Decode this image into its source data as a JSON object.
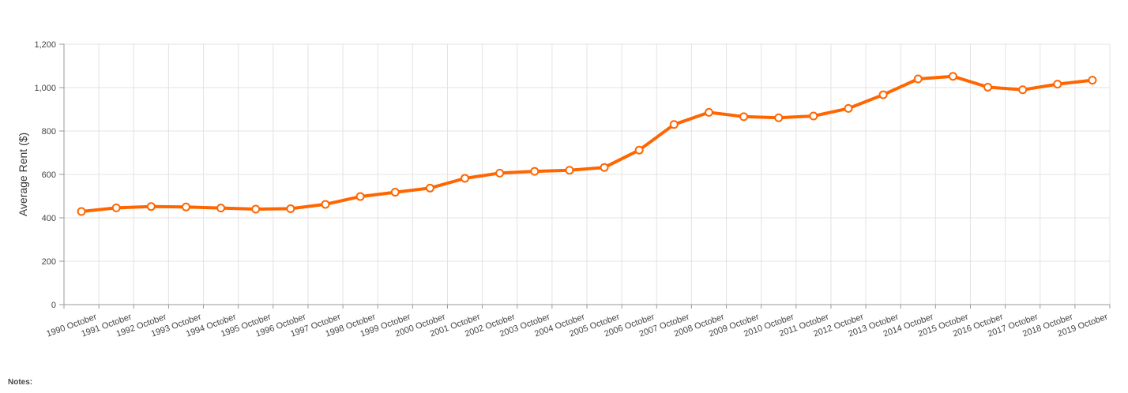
{
  "chart_data": {
    "type": "line",
    "title": "",
    "xlabel": "",
    "ylabel": "Average Rent ($)",
    "ylim": [
      0,
      1200
    ],
    "yticks": [
      0,
      200,
      400,
      600,
      800,
      1000,
      1200
    ],
    "ytick_labels": [
      "0",
      "200",
      "400",
      "600",
      "800",
      "1,000",
      "1,200"
    ],
    "grid": true,
    "categories": [
      "1990 October",
      "1991 October",
      "1992 October",
      "1993 October",
      "1994 October",
      "1995 October",
      "1996 October",
      "1997 October",
      "1998 October",
      "1999 October",
      "2000 October",
      "2001 October",
      "2002 October",
      "2003 October",
      "2004 October",
      "2005 October",
      "2006 October",
      "2007 October",
      "2008 October",
      "2009 October",
      "2010 October",
      "2011 October",
      "2012 October",
      "2013 October",
      "2014 October",
      "2015 October",
      "2016 October",
      "2017 October",
      "2018 October",
      "2019 October"
    ],
    "series": [
      {
        "color": "#ff6600",
        "values": [
          429,
          446,
          452,
          450,
          445,
          440,
          442,
          462,
          498,
          518,
          537,
          582,
          606,
          614,
          619,
          632,
          712,
          830,
          886,
          866,
          861,
          869,
          904,
          967,
          1040,
          1052,
          1002,
          990,
          1016,
          1034
        ]
      }
    ]
  },
  "footer": {
    "notes_label": "Notes:"
  }
}
